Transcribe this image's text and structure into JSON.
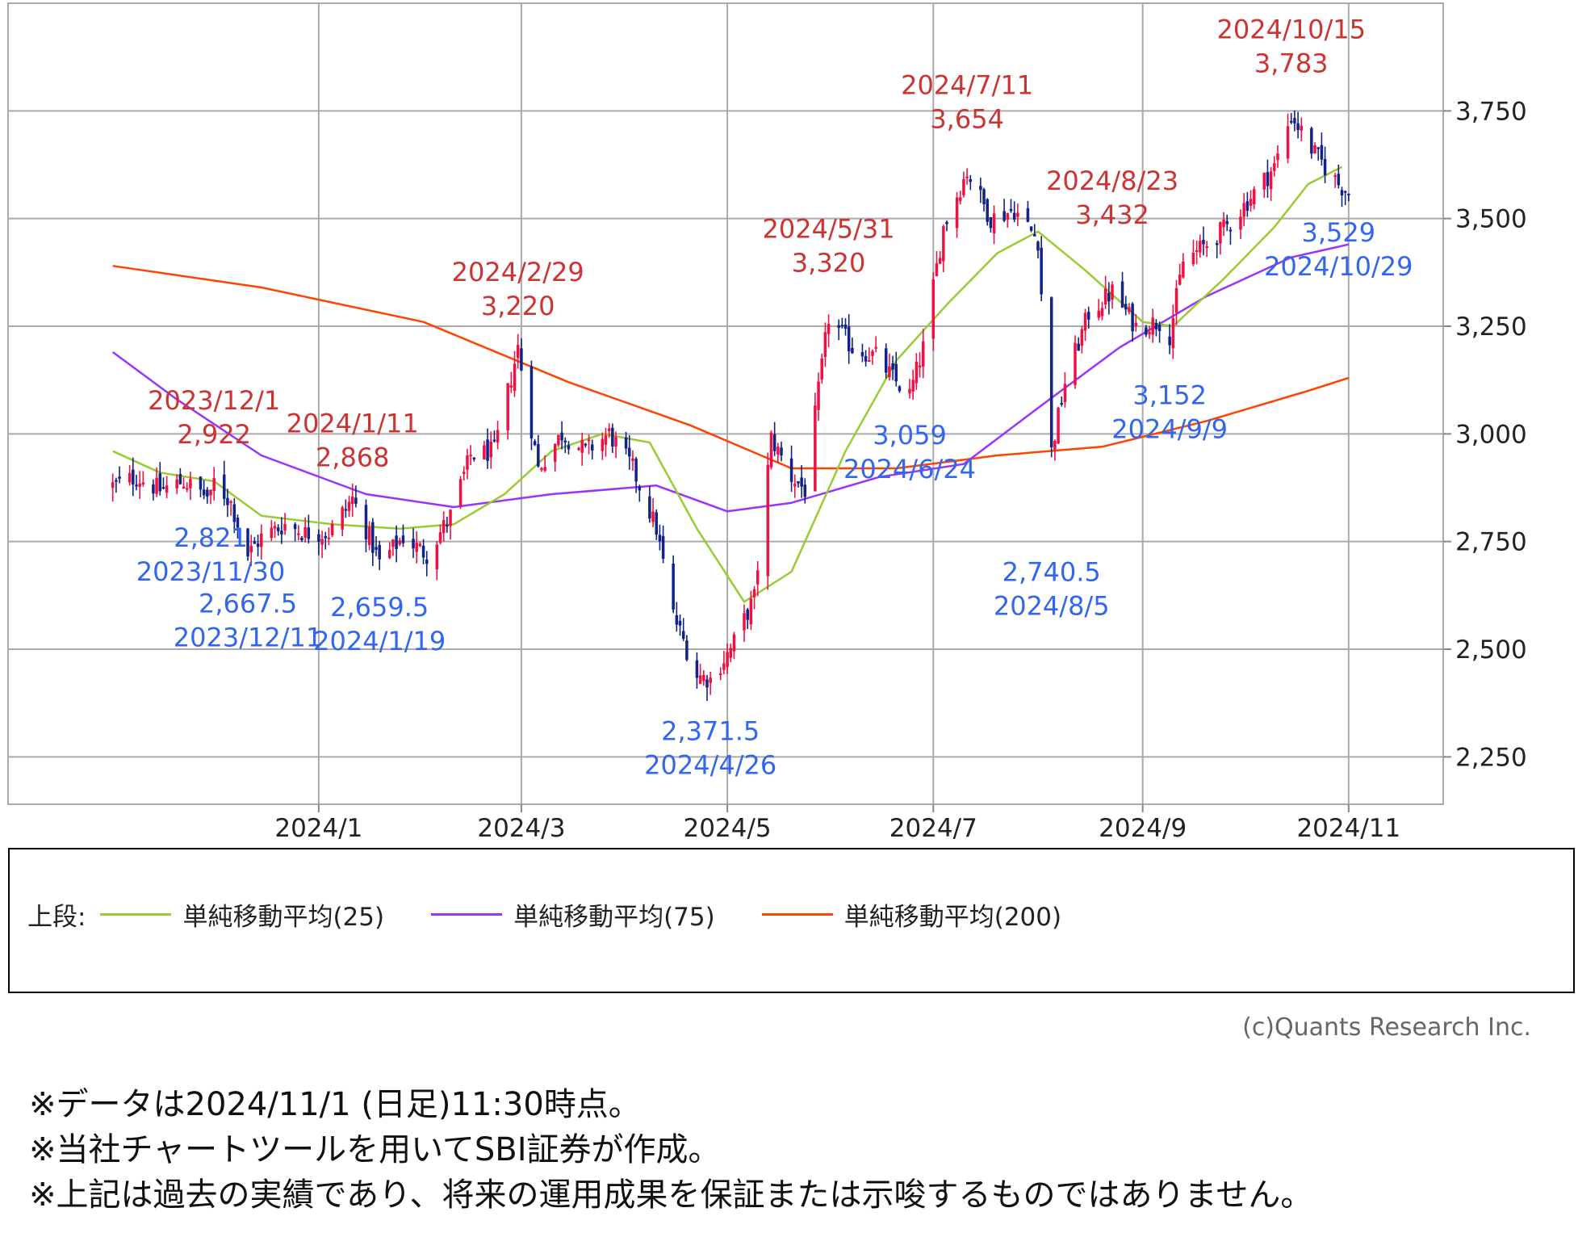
{
  "chart_data": {
    "type": "candlestick",
    "y_axis": {
      "ticks": [
        "3,750",
        "3,500",
        "3,250",
        "3,000",
        "2,750",
        "2,500",
        "2,250"
      ],
      "tick_values": [
        3750,
        3500,
        3250,
        3000,
        2750,
        2500,
        2250
      ],
      "range": [
        2140,
        4000
      ],
      "position": "right"
    },
    "x_axis": {
      "ticks": [
        "2024/1",
        "2024/3",
        "2024/5",
        "2024/7",
        "2024/9",
        "2024/11"
      ],
      "tick_dates": [
        "2024-01-01",
        "2024-03-01",
        "2024-05-01",
        "2024-07-01",
        "2024-09-01",
        "2024-11-01"
      ],
      "range": [
        "2023-10-01",
        "2024-11-29"
      ]
    },
    "grid": true,
    "legend": {
      "prefix": "上段:",
      "placement": "bottom",
      "items": [
        {
          "label": "単純移動平均(25)",
          "color": "#99cc33"
        },
        {
          "label": "単純移動平均(75)",
          "color": "#9933ff"
        },
        {
          "label": "単純移動平均(200)",
          "color": "#ff4400"
        }
      ]
    },
    "colors": {
      "up": "#ee1144",
      "down": "#112288",
      "high_label": "#cc3333",
      "low_label": "#3366ee"
    },
    "high_annotations": [
      {
        "value": "2,922",
        "date": "2023/12/1",
        "x": "2023-12-01",
        "y": 2922
      },
      {
        "value": "2,868",
        "date": "2024/1/11",
        "x": "2024-01-11",
        "y": 2868
      },
      {
        "value": "3,220",
        "date": "2024/2/29",
        "x": "2024-02-29",
        "y": 3220
      },
      {
        "value": "3,320",
        "date": "2024/5/31",
        "x": "2024-05-31",
        "y": 3320
      },
      {
        "value": "3,654",
        "date": "2024/7/11",
        "x": "2024-07-11",
        "y": 3654
      },
      {
        "value": "3,432",
        "date": "2024/8/23",
        "x": "2024-08-23",
        "y": 3432
      },
      {
        "value": "3,783",
        "date": "2024/10/15",
        "x": "2024-10-15",
        "y": 3783
      }
    ],
    "low_annotations": [
      {
        "value": "2,821",
        "date": "2023/11/30",
        "x": "2023-11-30",
        "y": 2821
      },
      {
        "value": "2,667.5",
        "date": "2023/12/11",
        "x": "2023-12-11",
        "y": 2667.5
      },
      {
        "value": "2,659.5",
        "date": "2024/1/19",
        "x": "2024-01-19",
        "y": 2659.5
      },
      {
        "value": "2,371.5",
        "date": "2024/4/26",
        "x": "2024-04-26",
        "y": 2371.5
      },
      {
        "value": "3,059",
        "date": "2024/6/24",
        "x": "2024-06-24",
        "y": 3059
      },
      {
        "value": "2,740.5",
        "date": "2024/8/5",
        "x": "2024-08-05",
        "y": 2740.5
      },
      {
        "value": "3,152",
        "date": "2024/9/9",
        "x": "2024-09-09",
        "y": 3152
      },
      {
        "value": "3,529",
        "date": "2024/10/29",
        "x": "2024-10-29",
        "y": 3529
      }
    ],
    "close_path": [
      [
        "2023-11-01",
        2880
      ],
      [
        "2023-11-08",
        2900
      ],
      [
        "2023-11-15",
        2870
      ],
      [
        "2023-11-22",
        2890
      ],
      [
        "2023-11-30",
        2850
      ],
      [
        "2023-12-01",
        2890
      ],
      [
        "2023-12-06",
        2840
      ],
      [
        "2023-12-11",
        2720
      ],
      [
        "2023-12-15",
        2760
      ],
      [
        "2023-12-22",
        2790
      ],
      [
        "2023-12-28",
        2770
      ],
      [
        "2024-01-04",
        2770
      ],
      [
        "2024-01-11",
        2850
      ],
      [
        "2024-01-16",
        2760
      ],
      [
        "2024-01-19",
        2700
      ],
      [
        "2024-01-26",
        2760
      ],
      [
        "2024-02-02",
        2720
      ],
      [
        "2024-02-09",
        2810
      ],
      [
        "2024-02-15",
        2950
      ],
      [
        "2024-02-22",
        2960
      ],
      [
        "2024-02-29",
        3200
      ],
      [
        "2024-03-06",
        2920
      ],
      [
        "2024-03-13",
        3000
      ],
      [
        "2024-03-20",
        2960
      ],
      [
        "2024-03-27",
        3000
      ],
      [
        "2024-04-03",
        2920
      ],
      [
        "2024-04-10",
        2780
      ],
      [
        "2024-04-15",
        2580
      ],
      [
        "2024-04-22",
        2440
      ],
      [
        "2024-04-26",
        2430
      ],
      [
        "2024-05-02",
        2500
      ],
      [
        "2024-05-09",
        2620
      ],
      [
        "2024-05-14",
        2990
      ],
      [
        "2024-05-20",
        2900
      ],
      [
        "2024-05-24",
        2870
      ],
      [
        "2024-05-31",
        3270
      ],
      [
        "2024-06-07",
        3200
      ],
      [
        "2024-06-14",
        3180
      ],
      [
        "2024-06-20",
        3120
      ],
      [
        "2024-06-24",
        3090
      ],
      [
        "2024-06-28",
        3200
      ],
      [
        "2024-07-04",
        3480
      ],
      [
        "2024-07-11",
        3610
      ],
      [
        "2024-07-18",
        3500
      ],
      [
        "2024-07-25",
        3520
      ],
      [
        "2024-08-01",
        3450
      ],
      [
        "2024-08-05",
        2960
      ],
      [
        "2024-08-09",
        3120
      ],
      [
        "2024-08-16",
        3280
      ],
      [
        "2024-08-23",
        3330
      ],
      [
        "2024-08-30",
        3250
      ],
      [
        "2024-09-06",
        3260
      ],
      [
        "2024-09-09",
        3230
      ],
      [
        "2024-09-13",
        3400
      ],
      [
        "2024-09-20",
        3440
      ],
      [
        "2024-09-27",
        3490
      ],
      [
        "2024-10-04",
        3560
      ],
      [
        "2024-10-10",
        3620
      ],
      [
        "2024-10-15",
        3740
      ],
      [
        "2024-10-22",
        3650
      ],
      [
        "2024-10-29",
        3580
      ],
      [
        "2024-11-01",
        3560
      ]
    ],
    "ma25": [
      [
        "2023-11-01",
        2960
      ],
      [
        "2023-11-15",
        2910
      ],
      [
        "2023-12-01",
        2890
      ],
      [
        "2023-12-15",
        2810
      ],
      [
        "2024-01-05",
        2790
      ],
      [
        "2024-01-25",
        2780
      ],
      [
        "2024-02-10",
        2790
      ],
      [
        "2024-02-25",
        2860
      ],
      [
        "2024-03-10",
        2960
      ],
      [
        "2024-03-25",
        3000
      ],
      [
        "2024-04-08",
        2980
      ],
      [
        "2024-04-22",
        2780
      ],
      [
        "2024-05-06",
        2610
      ],
      [
        "2024-05-20",
        2680
      ],
      [
        "2024-06-05",
        2960
      ],
      [
        "2024-06-20",
        3170
      ],
      [
        "2024-07-05",
        3300
      ],
      [
        "2024-07-20",
        3420
      ],
      [
        "2024-08-01",
        3470
      ],
      [
        "2024-08-15",
        3380
      ],
      [
        "2024-09-01",
        3260
      ],
      [
        "2024-09-10",
        3250
      ],
      [
        "2024-09-25",
        3360
      ],
      [
        "2024-10-10",
        3480
      ],
      [
        "2024-10-20",
        3580
      ],
      [
        "2024-10-30",
        3620
      ]
    ],
    "ma75": [
      [
        "2023-11-01",
        3190
      ],
      [
        "2023-11-20",
        3080
      ],
      [
        "2023-12-15",
        2950
      ],
      [
        "2024-01-15",
        2860
      ],
      [
        "2024-02-10",
        2830
      ],
      [
        "2024-03-10",
        2860
      ],
      [
        "2024-04-10",
        2880
      ],
      [
        "2024-05-01",
        2820
      ],
      [
        "2024-05-20",
        2840
      ],
      [
        "2024-06-15",
        2900
      ],
      [
        "2024-07-10",
        2930
      ],
      [
        "2024-08-01",
        3060
      ],
      [
        "2024-08-25",
        3200
      ],
      [
        "2024-09-20",
        3320
      ],
      [
        "2024-10-15",
        3410
      ],
      [
        "2024-11-01",
        3440
      ]
    ],
    "ma200": [
      [
        "2023-11-01",
        3390
      ],
      [
        "2023-12-15",
        3340
      ],
      [
        "2024-02-01",
        3260
      ],
      [
        "2024-03-15",
        3120
      ],
      [
        "2024-04-20",
        3020
      ],
      [
        "2024-05-20",
        2920
      ],
      [
        "2024-06-20",
        2920
      ],
      [
        "2024-07-20",
        2950
      ],
      [
        "2024-08-20",
        2970
      ],
      [
        "2024-09-20",
        3030
      ],
      [
        "2024-10-20",
        3100
      ],
      [
        "2024-11-01",
        3130
      ]
    ]
  },
  "copyright": "(c)Quants Research Inc.",
  "notes": [
    "※データは2024/11/1 (日足)11:30時点。",
    "※当社チャートツールを用いてSBI証券が作成。",
    "※上記は過去の実績であり、将来の運用成果を保証または示唆するものではありません。"
  ]
}
